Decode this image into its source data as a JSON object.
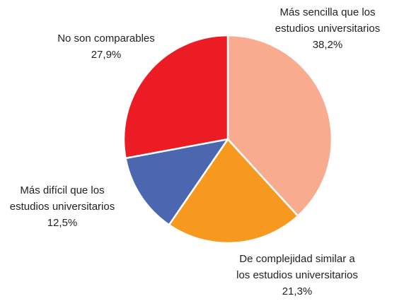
{
  "chart_data": {
    "type": "pie",
    "categories": [
      "Más sencilla que los estudios universitarios",
      "De complejidad similar a los estudios universitarios",
      "Más difícil que los estudios universitarios",
      "No son comparables"
    ],
    "values": [
      38.2,
      21.3,
      12.5,
      27.9
    ],
    "value_labels": [
      "38,2%",
      "21,3%",
      "12,5%",
      "27,9%"
    ],
    "colors": [
      "#f9ab8f",
      "#f7991f",
      "#4a67b0",
      "#ec1c24"
    ]
  }
}
